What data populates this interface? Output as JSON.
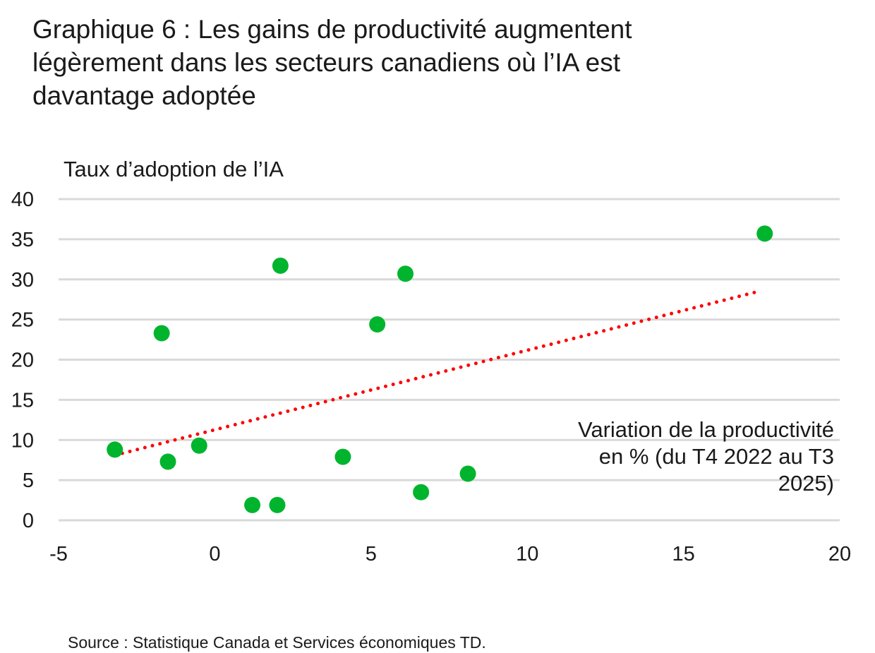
{
  "chart_data": {
    "type": "scatter",
    "title": "Graphique 6 : Les gains de productivité augmentent légèrement dans les secteurs canadiens où l’IA est davantage adoptée",
    "xlabel": "Variation de la productivité en % (du T4 2022 au T3 2025)",
    "ylabel": "Taux d’adoption de l’IA",
    "xlim": [
      -5,
      20
    ],
    "ylim": [
      0,
      40
    ],
    "x_ticks": [
      "-5",
      "0",
      "5",
      "10",
      "15",
      "20"
    ],
    "y_ticks": [
      "0",
      "5",
      "10",
      "15",
      "20",
      "25",
      "30",
      "35",
      "40"
    ],
    "grid": "horizontal",
    "points": [
      {
        "x": -3.2,
        "y": 8.8
      },
      {
        "x": -1.7,
        "y": 23.3
      },
      {
        "x": -1.5,
        "y": 7.3
      },
      {
        "x": -0.5,
        "y": 9.3
      },
      {
        "x": 1.2,
        "y": 1.9
      },
      {
        "x": 2.0,
        "y": 1.9
      },
      {
        "x": 2.1,
        "y": 31.7
      },
      {
        "x": 4.1,
        "y": 7.9
      },
      {
        "x": 5.2,
        "y": 24.4
      },
      {
        "x": 6.1,
        "y": 30.7
      },
      {
        "x": 6.6,
        "y": 3.5
      },
      {
        "x": 8.1,
        "y": 5.8
      },
      {
        "x": 17.6,
        "y": 35.7
      }
    ],
    "trendline": {
      "style": "dotted",
      "from": {
        "x": -3.2,
        "y": 8.1
      },
      "to": {
        "x": 17.4,
        "y": 28.5
      }
    },
    "colors": {
      "points": "#00b42d",
      "trendline": "#ff0000",
      "grid": "#d9d9d9"
    }
  },
  "source": "Source : Statistique Canada et Services économiques TD."
}
